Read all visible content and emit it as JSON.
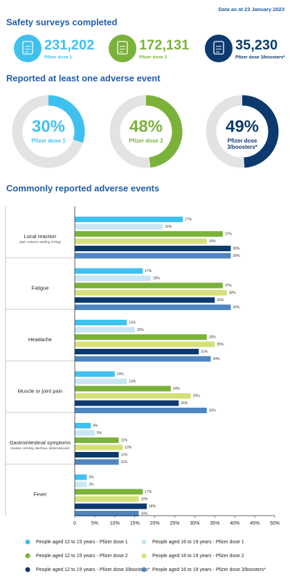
{
  "header": {
    "date": "Data as at 23 January 2023"
  },
  "sections": [
    "Safety surveys completed",
    "Reported at least one adverse event",
    "Commonly reported adverse events"
  ],
  "surveys": [
    {
      "count": "231,202",
      "label": "Pfizer dose 1",
      "color": "#3fc1f0"
    },
    {
      "count": "172,131",
      "label": "Pfizer dose 2",
      "color": "#7ab23a"
    },
    {
      "count": "35,230",
      "label": "Pfizer dose 3/boosters*",
      "color": "#0d3a6e"
    }
  ],
  "chart_data": [
    {
      "type": "donut",
      "label": "Pfizer dose 1",
      "values": [
        30
      ],
      "value_labels": [
        "30%"
      ],
      "color": "#3fc1f0",
      "ylim": [
        0,
        100
      ]
    },
    {
      "type": "donut",
      "label": "Pfizer dose 2",
      "values": [
        48
      ],
      "value_labels": [
        "48%"
      ],
      "color": "#7ab23a",
      "ylim": [
        0,
        100
      ]
    },
    {
      "type": "donut",
      "label": "Pfizer dose 3/boosters*",
      "values": [
        49
      ],
      "value_labels": [
        "49%"
      ],
      "color": "#0d3a6e",
      "ylim": [
        0,
        100
      ]
    },
    {
      "type": "hbar",
      "categories": [
        "Local reaction",
        "Fatigue",
        "Headache",
        "Muscle or joint pain",
        "Gastrointestinal symptoms",
        "Fever"
      ],
      "category_notes": [
        "(pain, redness, swelling, itching)",
        null,
        null,
        null,
        "(nausea, vomiting, diarrhoea, abdominal pain)",
        null
      ],
      "xlim": [
        0,
        50
      ],
      "xticks": [
        0,
        {
          "value": 5,
          "label": "5%"
        },
        {
          "value": 10,
          "label": "10%"
        },
        {
          "value": 15,
          "label": "15%"
        },
        {
          "value": 20,
          "label": "20%"
        },
        {
          "value": 25,
          "label": "25%"
        },
        {
          "value": 30,
          "label": "30%"
        },
        {
          "value": 35,
          "label": "35%"
        },
        {
          "value": 40,
          "label": "40%"
        },
        {
          "value": 45,
          "label": "45%"
        },
        {
          "value": 50,
          "label": "50%"
        }
      ],
      "series": [
        {
          "name": "People aged 12 to 15 years - Pfizer dose 1",
          "color": "#3fc1f0",
          "values": [
            27,
            17,
            13,
            10,
            4,
            3
          ],
          "value_labels": [
            "27%",
            "17%",
            "13%",
            "10%",
            "4%",
            "3%"
          ]
        },
        {
          "name": "People aged 16 to 19 years - Pfizer dose 1",
          "color": "#c9e6f5",
          "values": [
            22,
            19,
            15,
            13,
            5,
            3
          ],
          "value_labels": [
            "22%",
            "19%",
            "15%",
            "13%",
            "5%",
            "3%"
          ]
        },
        {
          "name": "People aged 12 to 15 years - Pfizer dose 2",
          "color": "#7ab23a",
          "values": [
            37,
            37,
            33,
            24,
            11,
            17
          ],
          "value_labels": [
            "37%",
            "37%",
            "33%",
            "24%",
            "11%",
            "17%"
          ]
        },
        {
          "name": "People aged 16 to 19 years - Pfizer dose 2",
          "color": "#d6e07a",
          "values": [
            33,
            38,
            35,
            29,
            12,
            16
          ],
          "value_labels": [
            "33%",
            "38%",
            "35%",
            "29%",
            "12%",
            "16%"
          ]
        },
        {
          "name": "People aged 12 to 15 years - Pfizer dose 3/boosters*",
          "color": "#0d3a6e",
          "values": [
            39,
            35,
            31,
            26,
            11,
            18
          ],
          "value_labels": [
            "39%",
            "35%",
            "31%",
            "26%",
            "11%",
            "18%"
          ]
        },
        {
          "name": "People aged 16 to 19 years - Pfizer dose 3/boosters*",
          "color": "#4f86c0",
          "values": [
            39,
            39,
            34,
            33,
            11,
            16
          ],
          "value_labels": [
            "39%",
            "39%",
            "34%",
            "33%",
            "11%",
            "16%"
          ]
        }
      ]
    }
  ]
}
